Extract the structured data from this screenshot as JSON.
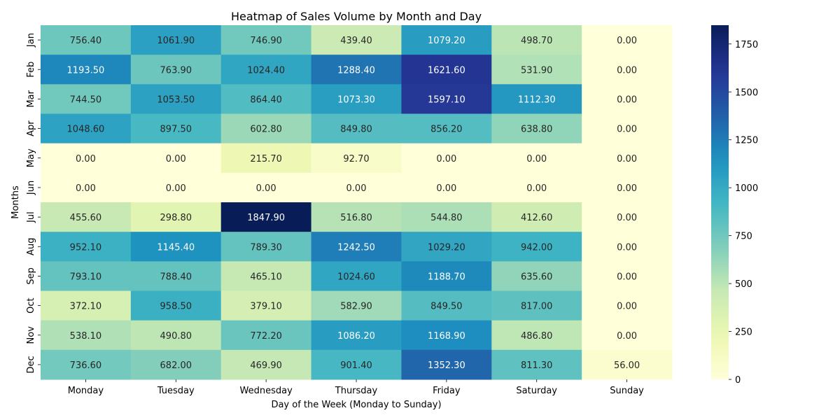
{
  "chart_data": {
    "type": "heatmap",
    "title": "Heatmap of Sales Volume by Month and Day",
    "xlabel": "Day of the Week (Monday to Sunday)",
    "ylabel": "Months",
    "x_categories": [
      "Monday",
      "Tuesday",
      "Wednesday",
      "Thursday",
      "Friday",
      "Saturday",
      "Sunday"
    ],
    "y_categories": [
      "Jan",
      "Feb",
      "Mar",
      "Apr",
      "May",
      "Jun",
      "Jul",
      "Aug",
      "Sep",
      "Oct",
      "Nov",
      "Dec"
    ],
    "values": [
      [
        756.4,
        1061.9,
        746.9,
        439.4,
        1079.2,
        498.7,
        0.0
      ],
      [
        1193.5,
        763.9,
        1024.4,
        1288.4,
        1621.6,
        531.9,
        0.0
      ],
      [
        744.5,
        1053.5,
        864.4,
        1073.3,
        1597.1,
        1112.3,
        0.0
      ],
      [
        1048.6,
        897.5,
        602.8,
        849.8,
        856.2,
        638.8,
        0.0
      ],
      [
        0.0,
        0.0,
        215.7,
        92.7,
        0.0,
        0.0,
        0.0
      ],
      [
        0.0,
        0.0,
        0.0,
        0.0,
        0.0,
        0.0,
        0.0
      ],
      [
        455.6,
        298.8,
        1847.9,
        516.8,
        544.8,
        412.6,
        0.0
      ],
      [
        952.1,
        1145.4,
        789.3,
        1242.5,
        1029.2,
        942.0,
        0.0
      ],
      [
        793.1,
        788.4,
        465.1,
        1024.6,
        1188.7,
        635.6,
        0.0
      ],
      [
        372.1,
        958.5,
        379.1,
        582.9,
        849.5,
        817.0,
        0.0
      ],
      [
        538.1,
        490.8,
        772.2,
        1086.2,
        1168.9,
        486.8,
        0.0
      ],
      [
        736.6,
        682.0,
        469.9,
        901.4,
        1352.3,
        811.3,
        56.0
      ]
    ],
    "colormap": "YlGnBu",
    "vmin": 0,
    "vmax": 1847.9,
    "colorbar_ticks": [
      0,
      250,
      500,
      750,
      1000,
      1250,
      1500,
      1750
    ],
    "annotate": true,
    "value_format": "2dp"
  }
}
